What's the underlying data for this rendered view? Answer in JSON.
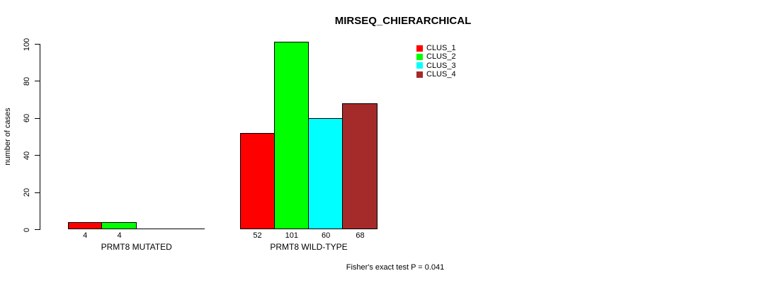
{
  "chart_data": {
    "type": "bar",
    "title": "MIRSEQ_CHIERARCHICAL",
    "ylabel": "number of cases",
    "xlabel": "",
    "ylim": [
      0,
      100
    ],
    "yticks": [
      0,
      20,
      40,
      60,
      80,
      100
    ],
    "grid": false,
    "legend_position": "top-right",
    "categories": [
      "PRMT8 MUTATED",
      "PRMT8 WILD-TYPE"
    ],
    "series": [
      {
        "name": "CLUS_1",
        "color": "#FF0000",
        "values": [
          4,
          52
        ]
      },
      {
        "name": "CLUS_2",
        "color": "#00FF00",
        "values": [
          4,
          101
        ]
      },
      {
        "name": "CLUS_3",
        "color": "#00FFFF",
        "values": [
          0,
          60
        ]
      },
      {
        "name": "CLUS_4",
        "color": "#A52A2A",
        "values": [
          0,
          68
        ]
      }
    ],
    "bar_labels": [
      [
        "4",
        "4",
        "",
        ""
      ],
      [
        "52",
        "101",
        "60",
        "68"
      ]
    ],
    "annotation": "Fisher's exact test P = 0.041"
  },
  "colors": {
    "background": "#FFFFFF",
    "axis": "#000000",
    "text": "#000000"
  }
}
